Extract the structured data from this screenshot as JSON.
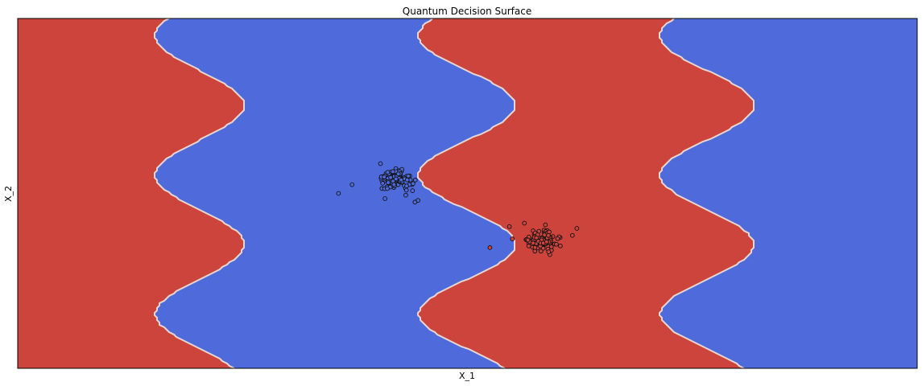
{
  "chart_data": {
    "type": "scatter",
    "title": "Quantum Decision Surface",
    "xlabel": "X_1",
    "ylabel": "X_2",
    "ticks": "none",
    "xlim": [
      -3.0,
      3.0
    ],
    "ylim": [
      -1.0,
      1.0
    ],
    "grid": false,
    "legend": "none",
    "background": "decision surface: alternating vertical wavy bands, red then blue, repeating twice across the x range",
    "colors": {
      "class_0": "#4f6bdb",
      "class_1": "#cc443b",
      "boundary": "#e8d6d2"
    },
    "series": [
      {
        "class": 0,
        "color": "#4f6bdb",
        "center": [
          -0.48,
          0.08
        ],
        "spread": [
          0.1,
          0.05
        ],
        "count": 110,
        "points": [
          [
            -0.86,
            0.0
          ],
          [
            -0.77,
            0.05
          ],
          [
            -0.58,
            0.17
          ],
          [
            -0.51,
            0.11
          ],
          [
            -0.46,
            0.13
          ],
          [
            -0.37,
            0.05
          ],
          [
            -0.33,
            -0.04
          ],
          [
            -0.35,
            -0.05
          ],
          [
            -0.38,
            0.07
          ],
          [
            -0.55,
            -0.03
          ]
        ]
      },
      {
        "class": 1,
        "color": "#cc443b",
        "center": [
          0.5,
          -0.27
        ],
        "spread": [
          0.1,
          0.05
        ],
        "count": 110,
        "points": [
          [
            0.15,
            -0.31
          ],
          [
            0.28,
            -0.19
          ],
          [
            0.38,
            -0.17
          ],
          [
            0.55,
            -0.35
          ],
          [
            0.7,
            -0.24
          ],
          [
            0.73,
            -0.2
          ],
          [
            0.45,
            -0.33
          ],
          [
            0.62,
            -0.3
          ],
          [
            0.3,
            -0.26
          ],
          [
            0.52,
            -0.18
          ]
        ]
      }
    ]
  }
}
